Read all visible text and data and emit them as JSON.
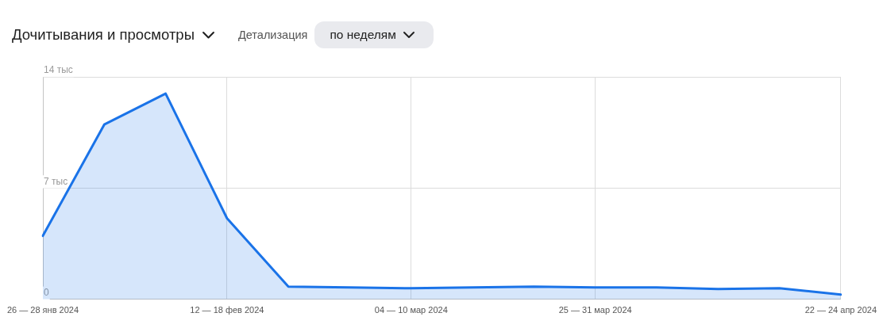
{
  "chart_data": {
    "type": "area",
    "title": "Дочитывания и просмотры",
    "annotations": [
      "Детализация",
      "по неделям"
    ],
    "categories": [
      "26 — 28 янв 2024",
      null,
      null,
      "12 — 18 фев 2024",
      null,
      null,
      "04 — 10 мар 2024",
      null,
      null,
      "25 — 31 мар 2024",
      null,
      null,
      null,
      "22 — 24 апр 2024"
    ],
    "series": [
      {
        "color": "#1a73e8",
        "values": [
          4.0,
          11.0,
          12.95,
          5.1,
          0.8,
          0.75,
          0.7,
          0.75,
          0.8,
          0.75,
          0.75,
          0.65,
          0.7,
          0.3
        ]
      }
    ],
    "ylim": [
      0,
      14
    ],
    "yticks": [
      0,
      {
        "value": 7,
        "label": "7 тыс"
      },
      {
        "value": 14,
        "label": "14 тыс"
      }
    ],
    "grid": true,
    "marker": "none"
  }
}
